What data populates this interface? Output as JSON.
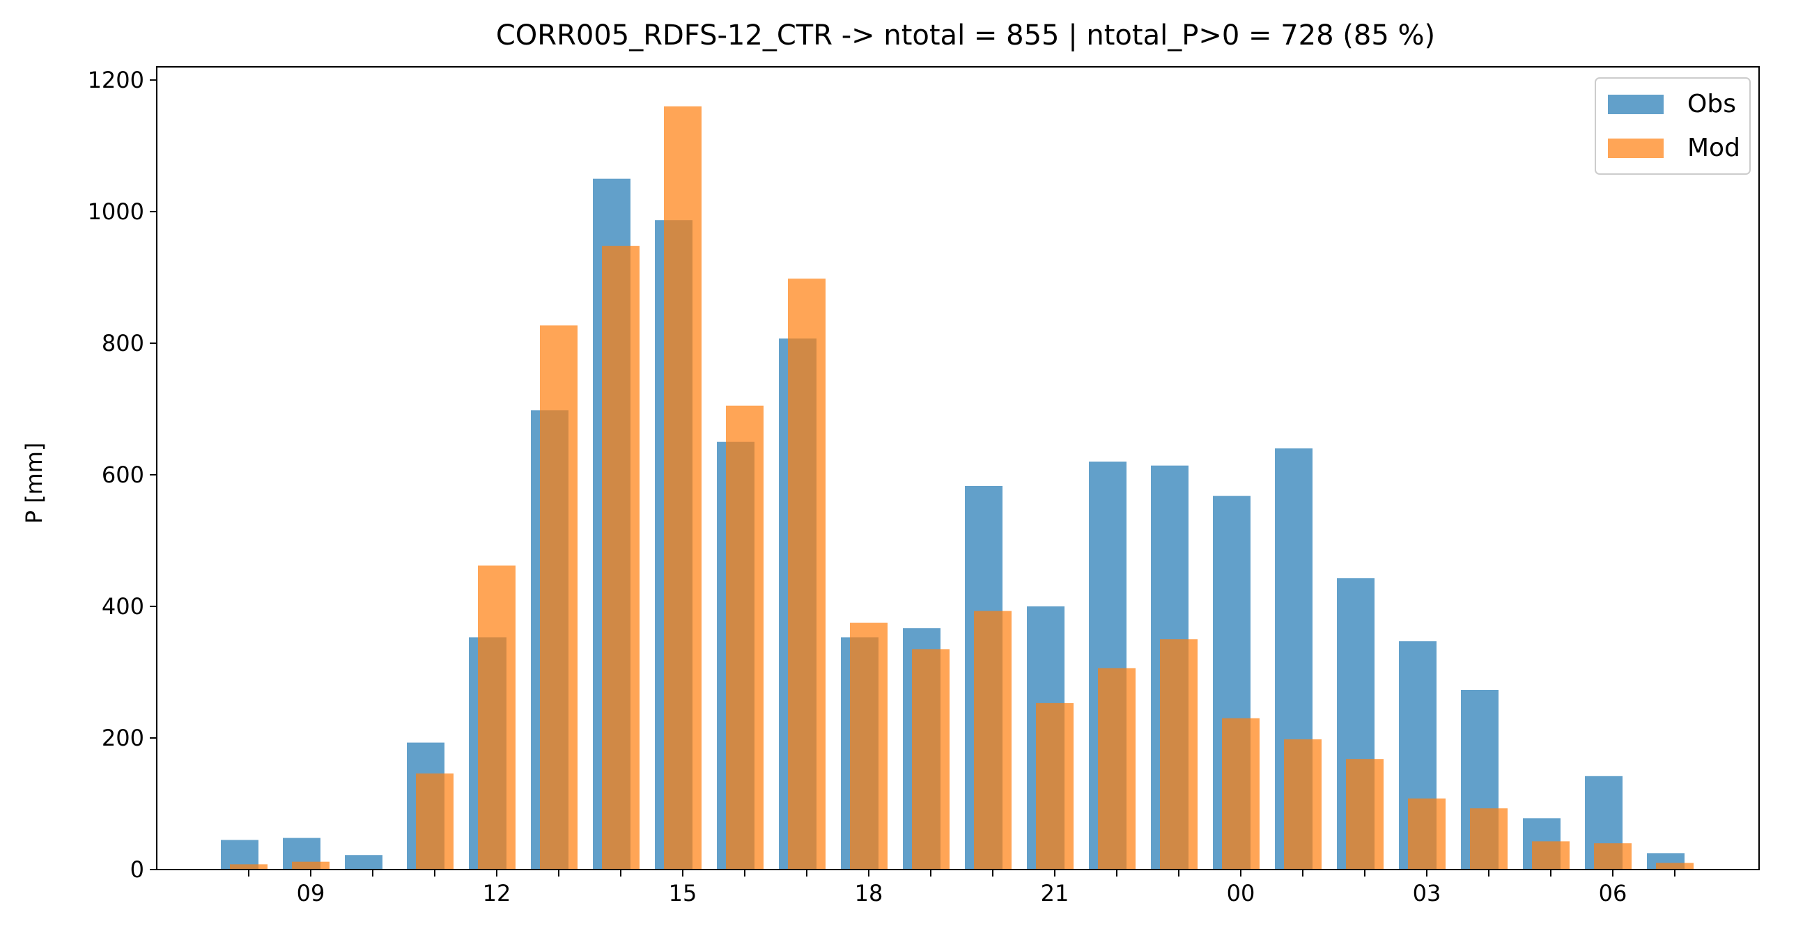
{
  "chart_data": {
    "type": "bar",
    "title": "CORR005_RDFS-12_CTR -> ntotal = 855 | ntotal_P>0 = 728 (85 %)",
    "xlabel": "",
    "ylabel": "P [mm]",
    "ylim": [
      0,
      1220
    ],
    "yticks": [
      0,
      200,
      400,
      600,
      800,
      1000,
      1200
    ],
    "hours": [
      8,
      9,
      10,
      11,
      12,
      13,
      14,
      15,
      16,
      17,
      18,
      19,
      20,
      21,
      22,
      23,
      24,
      25,
      26,
      27,
      28,
      29,
      30,
      31
    ],
    "tick_labels": [
      {
        "hour": 9,
        "label": "09"
      },
      {
        "hour": 12,
        "label": "12"
      },
      {
        "hour": 15,
        "label": "15"
      },
      {
        "hour": 18,
        "label": "18"
      },
      {
        "hour": 21,
        "label": "21"
      },
      {
        "hour": 24,
        "label": "00"
      },
      {
        "hour": 27,
        "label": "03"
      },
      {
        "hour": 30,
        "label": "06"
      }
    ],
    "legend_position": "top-right",
    "grid": false,
    "series": [
      {
        "name": "Obs",
        "color": "#1f77b4",
        "values": [
          45,
          48,
          22,
          193,
          353,
          698,
          1050,
          987,
          650,
          807,
          353,
          367,
          583,
          400,
          620,
          614,
          568,
          640,
          443,
          347,
          273,
          78,
          142,
          25
        ]
      },
      {
        "name": "Mod",
        "color": "#ff7f0e",
        "values": [
          8,
          12,
          0,
          146,
          462,
          827,
          948,
          1160,
          705,
          898,
          375,
          335,
          393,
          253,
          306,
          350,
          230,
          198,
          168,
          108,
          93,
          43,
          40,
          10
        ]
      }
    ]
  }
}
